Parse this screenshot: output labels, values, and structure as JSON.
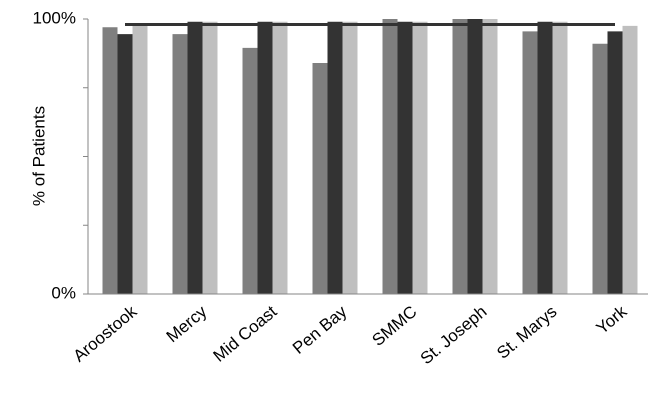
{
  "chart_data": {
    "type": "bar",
    "y_label": "% of Patients",
    "categories": [
      "Aroostook",
      "Mercy",
      "Mid Coast",
      "Pen Bay",
      "SMMC",
      "St. Joseph",
      "St. Marys",
      "York"
    ],
    "series": [
      {
        "color": "#7f7f7f",
        "values": [
          97,
          94.5,
          89.5,
          84,
          100,
          100,
          95.5,
          91
        ]
      },
      {
        "color": "#333333",
        "values": [
          94.5,
          99,
          99,
          99,
          99,
          100,
          99,
          95.5
        ]
      },
      {
        "color": "#bfbfbf",
        "values": [
          98,
          99,
          99,
          99,
          99,
          100,
          99,
          97.5
        ]
      }
    ],
    "ylim": [
      0,
      100
    ],
    "yticks": [
      {
        "value": 0,
        "label": "0%"
      },
      {
        "value": 100,
        "label": "100%"
      }
    ],
    "minor_yticks": [
      25,
      50,
      75
    ],
    "reference_line": {
      "value": 98,
      "color": "#333333"
    },
    "grid": false
  }
}
